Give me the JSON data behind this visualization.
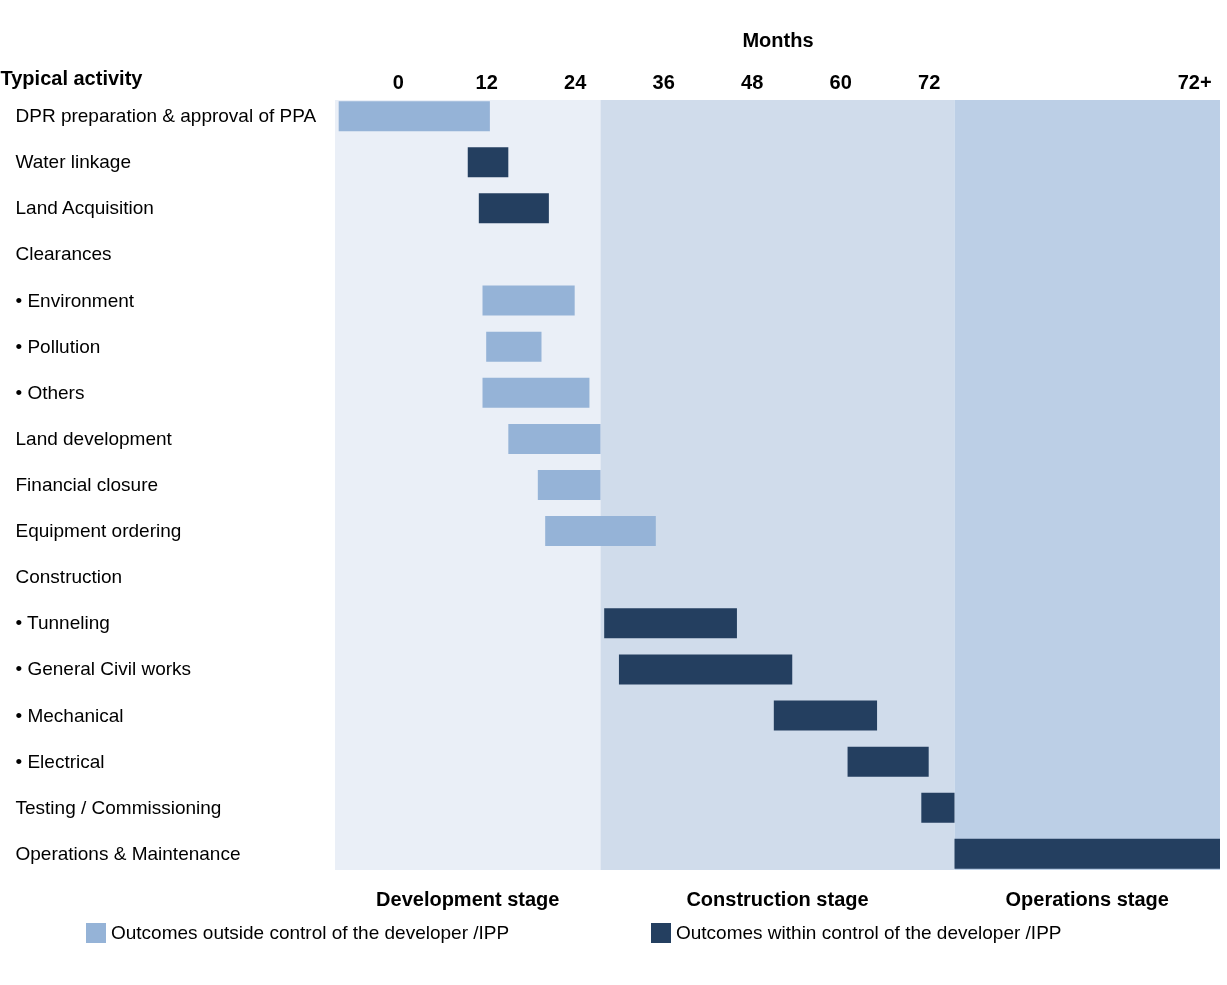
{
  "chart_data": {
    "type": "bar",
    "orientation": "horizontal",
    "xlabel": "Months",
    "ylabel": "Typical activity",
    "categories": [
      "DPR preparation & approval of PPA",
      "Water  linkage",
      "Land Acquisition",
      "Clearances",
      "•   Environment",
      "•   Pollution",
      "•   Others",
      "Land development",
      "Financial closure",
      "Equipment ordering",
      "Construction",
      "• Tunneling",
      "• General Civil  works",
      "• Mechanical",
      "• Electrical",
      "Testing  / Commissioning",
      "Operations & Maintenance"
    ],
    "series": [
      {
        "name": "Outcomes outside control of the developer /IPP",
        "color": "#95b3d7",
        "base": [
          -8,
          null,
          null,
          null,
          11.5,
          12,
          11.5,
          15,
          19,
          20,
          null,
          null,
          null,
          null,
          null,
          null,
          null
        ],
        "values": [
          20.5,
          null,
          null,
          null,
          12.5,
          7.5,
          14.5,
          12.5,
          8.5,
          15,
          null,
          null,
          null,
          null,
          null,
          null,
          null
        ]
      },
      {
        "name": "Outcomes within  control of the developer /IPP",
        "color": "#243f60",
        "base": [
          null,
          9.5,
          11,
          null,
          null,
          null,
          null,
          null,
          null,
          null,
          null,
          28,
          30,
          51,
          61,
          71,
          75.5
        ],
        "values": [
          null,
          5.5,
          9.5,
          null,
          null,
          null,
          null,
          null,
          null,
          null,
          null,
          18,
          23.5,
          14,
          11,
          4.5,
          36
        ]
      }
    ],
    "xlim": [
      -8.5,
      111.5
    ],
    "xticks": [
      0,
      12,
      24,
      36,
      48,
      60,
      72,
      {
        "value": 108,
        "label": "72+"
      }
    ],
    "bands": [
      {
        "axis": "x",
        "from": -8.5,
        "to": 27.5,
        "label": "Development stage",
        "color": "#eaeff7"
      },
      {
        "axis": "x",
        "from": 27.5,
        "to": 75.5,
        "label": "Construction stage",
        "color": "#d0dceb"
      },
      {
        "axis": "x",
        "from": 75.5,
        "to": 111.5,
        "label": "Operations stage",
        "color": "#bccfe6"
      }
    ],
    "legend": "bottom",
    "grid": false
  }
}
